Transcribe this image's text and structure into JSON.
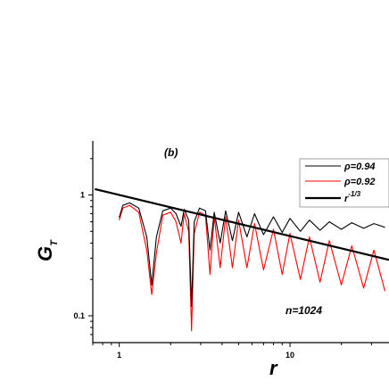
{
  "chart_data": {
    "type": "line",
    "panel_label": "(b)",
    "xlabel": "r",
    "ylabel": "G",
    "ylabel_sub": "T",
    "x_scale": "log",
    "y_scale": "log",
    "xlim": [
      0.7,
      38
    ],
    "ylim": [
      0.06,
      2.8
    ],
    "x_ticks": [
      {
        "value": 1,
        "label": "1"
      },
      {
        "value": 10,
        "label": "10"
      }
    ],
    "y_ticks": [
      {
        "value": 0.1,
        "label": "0.1"
      },
      {
        "value": 1,
        "label": "1"
      }
    ],
    "annotation": "n=1024",
    "legend_position": "top-right",
    "series": [
      {
        "name": "ρ=0.94",
        "color": "#000000",
        "points": [
          [
            1.0,
            0.65
          ],
          [
            1.05,
            0.82
          ],
          [
            1.15,
            0.86
          ],
          [
            1.3,
            0.78
          ],
          [
            1.45,
            0.45
          ],
          [
            1.55,
            0.18
          ],
          [
            1.65,
            0.45
          ],
          [
            1.8,
            0.74
          ],
          [
            2.0,
            0.78
          ],
          [
            2.15,
            0.7
          ],
          [
            2.3,
            0.55
          ],
          [
            2.4,
            0.76
          ],
          [
            2.55,
            0.62
          ],
          [
            2.65,
            0.12
          ],
          [
            2.75,
            0.6
          ],
          [
            2.95,
            0.78
          ],
          [
            3.2,
            0.74
          ],
          [
            3.4,
            0.35
          ],
          [
            3.6,
            0.72
          ],
          [
            3.9,
            0.4
          ],
          [
            4.2,
            0.74
          ],
          [
            4.6,
            0.42
          ],
          [
            5.0,
            0.72
          ],
          [
            5.6,
            0.45
          ],
          [
            6.2,
            0.7
          ],
          [
            7.0,
            0.47
          ],
          [
            8.0,
            0.66
          ],
          [
            9.0,
            0.49
          ],
          [
            10.0,
            0.64
          ],
          [
            11.5,
            0.5
          ],
          [
            13.0,
            0.62
          ],
          [
            15.0,
            0.51
          ],
          [
            17.0,
            0.6
          ],
          [
            20.0,
            0.52
          ],
          [
            23.0,
            0.59
          ],
          [
            27.0,
            0.53
          ],
          [
            31.0,
            0.58
          ],
          [
            36.0,
            0.54
          ]
        ]
      },
      {
        "name": "ρ=0.92",
        "color": "#ff0000",
        "points": [
          [
            1.0,
            0.62
          ],
          [
            1.05,
            0.78
          ],
          [
            1.15,
            0.82
          ],
          [
            1.3,
            0.72
          ],
          [
            1.45,
            0.35
          ],
          [
            1.55,
            0.15
          ],
          [
            1.65,
            0.33
          ],
          [
            1.8,
            0.68
          ],
          [
            2.0,
            0.72
          ],
          [
            2.15,
            0.6
          ],
          [
            2.3,
            0.4
          ],
          [
            2.4,
            0.7
          ],
          [
            2.55,
            0.5
          ],
          [
            2.65,
            0.075
          ],
          [
            2.75,
            0.48
          ],
          [
            2.95,
            0.72
          ],
          [
            3.2,
            0.68
          ],
          [
            3.4,
            0.22
          ],
          [
            3.6,
            0.66
          ],
          [
            3.9,
            0.25
          ],
          [
            4.2,
            0.66
          ],
          [
            4.6,
            0.25
          ],
          [
            5.0,
            0.62
          ],
          [
            5.6,
            0.25
          ],
          [
            6.2,
            0.58
          ],
          [
            7.0,
            0.24
          ],
          [
            8.0,
            0.52
          ],
          [
            9.0,
            0.22
          ],
          [
            10.0,
            0.48
          ],
          [
            11.5,
            0.2
          ],
          [
            13.0,
            0.45
          ],
          [
            15.0,
            0.19
          ],
          [
            17.0,
            0.42
          ],
          [
            20.0,
            0.18
          ],
          [
            23.0,
            0.38
          ],
          [
            27.0,
            0.17
          ],
          [
            31.0,
            0.35
          ],
          [
            36.0,
            0.16
          ]
        ]
      },
      {
        "name": "r",
        "name_sup": "-1/3",
        "color": "#000000",
        "points": [
          [
            0.72,
            1.12
          ],
          [
            38.0,
            0.29
          ]
        ]
      }
    ]
  }
}
